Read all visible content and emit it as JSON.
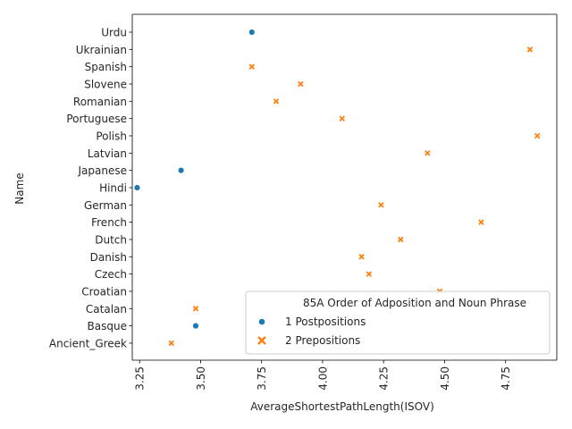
{
  "chart_data": {
    "type": "scatter",
    "title": "",
    "xlabel": "AverageShortestPathLength(ISOV)",
    "ylabel": "Name",
    "xlim": [
      3.22,
      4.96
    ],
    "xticks": [
      3.25,
      3.5,
      3.75,
      4.0,
      4.25,
      4.5,
      4.75
    ],
    "xtick_labels": [
      "3.25",
      "3.50",
      "3.75",
      "4.00",
      "4.25",
      "4.50",
      "4.75"
    ],
    "categories": [
      "Urdu",
      "Ukrainian",
      "Spanish",
      "Slovene",
      "Romanian",
      "Portuguese",
      "Polish",
      "Latvian",
      "Japanese",
      "Hindi",
      "German",
      "French",
      "Dutch",
      "Danish",
      "Czech",
      "Croatian",
      "Catalan",
      "Basque",
      "Ancient_Greek"
    ],
    "grid": false,
    "legend": {
      "title": "85A Order of Adposition and Noun Phrase",
      "placement": "bottom-right"
    },
    "series": [
      {
        "name": "1 Postpositions",
        "marker": "circle",
        "color": "#1f77b4",
        "points": [
          {
            "x": 3.71,
            "y": "Urdu"
          },
          {
            "x": 3.42,
            "y": "Japanese"
          },
          {
            "x": 3.24,
            "y": "Hindi"
          },
          {
            "x": 3.48,
            "y": "Basque"
          }
        ]
      },
      {
        "name": "2 Prepositions",
        "marker": "x",
        "color": "#ff7f0e",
        "points": [
          {
            "x": 4.85,
            "y": "Ukrainian"
          },
          {
            "x": 3.71,
            "y": "Spanish"
          },
          {
            "x": 3.91,
            "y": "Slovene"
          },
          {
            "x": 3.81,
            "y": "Romanian"
          },
          {
            "x": 4.08,
            "y": "Portuguese"
          },
          {
            "x": 4.88,
            "y": "Polish"
          },
          {
            "x": 4.43,
            "y": "Latvian"
          },
          {
            "x": 4.24,
            "y": "German"
          },
          {
            "x": 4.65,
            "y": "French"
          },
          {
            "x": 4.32,
            "y": "Dutch"
          },
          {
            "x": 4.16,
            "y": "Danish"
          },
          {
            "x": 4.19,
            "y": "Czech"
          },
          {
            "x": 4.48,
            "y": "Croatian"
          },
          {
            "x": 3.48,
            "y": "Catalan"
          },
          {
            "x": 3.38,
            "y": "Ancient_Greek"
          }
        ]
      }
    ]
  }
}
